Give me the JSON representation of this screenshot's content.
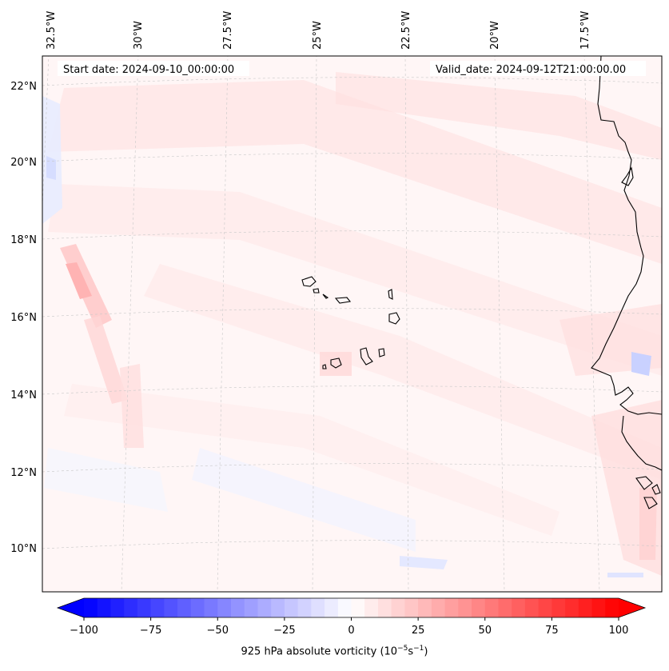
{
  "map": {
    "start_date": "Start date: 2024-09-10_00:00:00",
    "valid_date": "Valid_date: 2024-09-12T21:00:00.00",
    "lon_labels": [
      "32.5°W",
      "30°W",
      "27.5°W",
      "25°W",
      "22.5°W",
      "20°W",
      "17.5°W"
    ],
    "lat_labels": [
      "22°N",
      "20°N",
      "18°N",
      "16°N",
      "14°N",
      "12°N",
      "10°N"
    ]
  },
  "colorbar": {
    "ticks": [
      "−100",
      "−75",
      "−50",
      "−25",
      "0",
      "25",
      "50",
      "75",
      "100"
    ],
    "label_prefix": "925 hPa absolute vorticity (10",
    "label_exp1": "−5",
    "label_mid": "s",
    "label_exp2": "−1",
    "label_suffix": ")",
    "min_color": "#0000ff",
    "mid_color": "#ffffff",
    "max_color": "#ff0000"
  }
}
